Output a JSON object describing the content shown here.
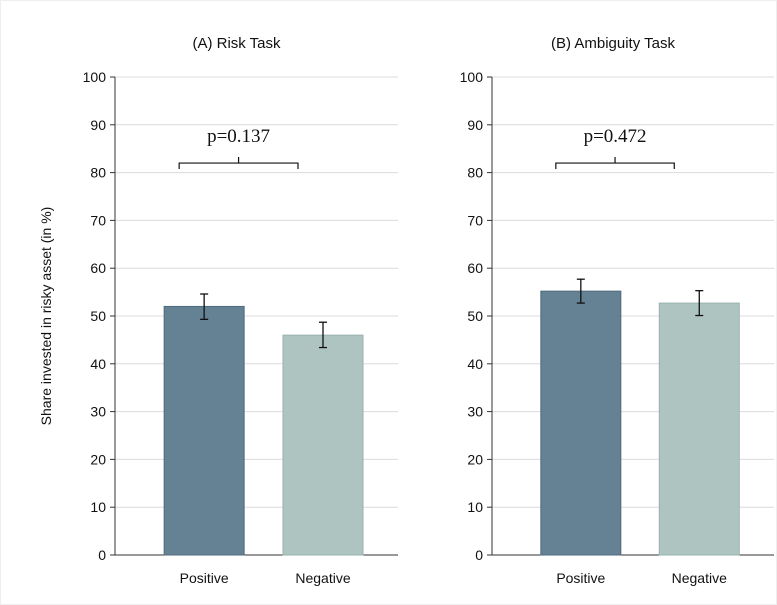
{
  "ylabel": "Share invested in risky asset (in %)",
  "chart_data": [
    {
      "type": "bar",
      "title": "(A) Risk Task",
      "categories": [
        "Positive",
        "Negative"
      ],
      "values": [
        52,
        46
      ],
      "error_low": [
        49.3,
        43.4
      ],
      "error_high": [
        54.6,
        48.7
      ],
      "colors": [
        "#658194",
        "#aec4c1"
      ],
      "ylim": [
        0,
        100
      ],
      "yticks": [
        0,
        10,
        20,
        30,
        40,
        50,
        60,
        70,
        80,
        90,
        100
      ],
      "annotation": "p=0.137",
      "annotation_level": 82,
      "grid": true
    },
    {
      "type": "bar",
      "title": "(B) Ambiguity Task",
      "categories": [
        "Positive",
        "Negative"
      ],
      "values": [
        55.2,
        52.7
      ],
      "error_low": [
        52.7,
        50.1
      ],
      "error_high": [
        57.7,
        55.3
      ],
      "colors": [
        "#658194",
        "#aec4c1"
      ],
      "ylim": [
        0,
        100
      ],
      "yticks": [
        0,
        10,
        20,
        30,
        40,
        50,
        60,
        70,
        80,
        90,
        100
      ],
      "annotation": "p=0.472",
      "annotation_level": 82,
      "grid": true
    }
  ]
}
